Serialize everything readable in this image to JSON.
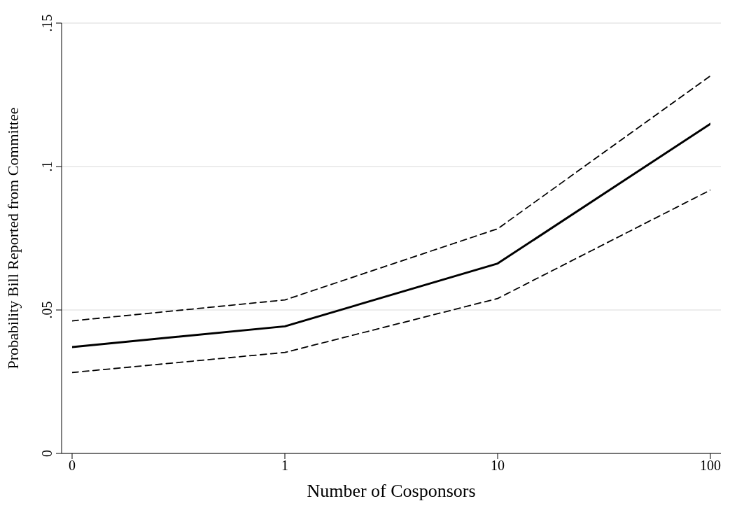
{
  "chart_data": {
    "type": "line",
    "xlabel": "Number of Cosponsors",
    "ylabel": "Probability Bill Reported from Committee",
    "categories": [
      "0",
      "1",
      "10",
      "100"
    ],
    "series": [
      {
        "color": "#000000",
        "values": [
          0.0371,
          0.0443,
          0.0662,
          0.1149
        ],
        "line_style": "solid"
      },
      {
        "color": "#000000",
        "values": [
          0.0462,
          0.0535,
          0.0783,
          0.1316
        ],
        "line_style": "dashed"
      },
      {
        "color": "#000000",
        "values": [
          0.0282,
          0.0352,
          0.054,
          0.0918
        ],
        "line_style": "dashed"
      }
    ],
    "ylim": [
      0,
      0.15
    ],
    "yticks": [
      0,
      {
        "value": 0.05,
        "label": ".05"
      },
      {
        "value": 0.1,
        "label": ".1"
      },
      {
        "value": 0.15,
        "label": ".15"
      }
    ],
    "grid": "y",
    "marker": "none"
  }
}
